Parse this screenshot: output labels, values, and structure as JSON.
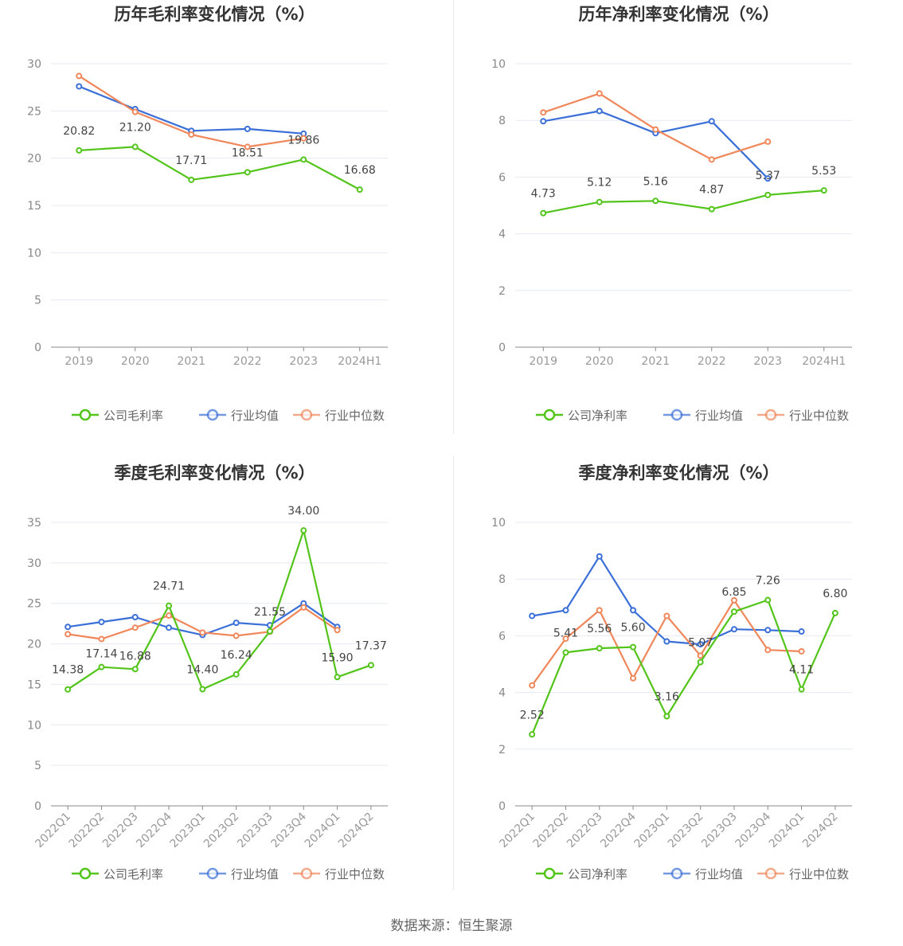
{
  "colors": {
    "company": "#52c41a",
    "avg": "#3a6fd8",
    "median": "#f0875a"
  },
  "legend": {
    "company_gross": "公司毛利率",
    "company_net": "公司净利率",
    "avg": "行业均值",
    "median": "行业中位数"
  },
  "source": "数据来源：恒生聚源",
  "chart_data": [
    {
      "type": "line",
      "title": "历年毛利率变化情况（%）",
      "categories": [
        "2019",
        "2020",
        "2021",
        "2022",
        "2023",
        "2024H1"
      ],
      "ylim": [
        0,
        30
      ],
      "yticks": [
        0,
        5,
        10,
        15,
        20,
        25,
        30
      ],
      "legend_position": "bottom",
      "series": [
        {
          "name": "公司毛利率",
          "role": "company",
          "values": [
            20.82,
            21.2,
            17.71,
            18.51,
            19.86,
            16.68
          ],
          "labels": [
            "20.82",
            "21.20",
            "17.71",
            "18.51",
            "19.86",
            "16.68"
          ]
        },
        {
          "name": "行业均值",
          "role": "avg",
          "values": [
            27.6,
            25.2,
            22.9,
            23.1,
            22.6,
            null
          ]
        },
        {
          "name": "行业中位数",
          "role": "median",
          "values": [
            28.7,
            24.9,
            22.5,
            21.2,
            22.1,
            null
          ]
        }
      ]
    },
    {
      "type": "line",
      "title": "历年净利率变化情况（%）",
      "categories": [
        "2019",
        "2020",
        "2021",
        "2022",
        "2023",
        "2024H1"
      ],
      "ylim": [
        0,
        10
      ],
      "yticks": [
        0,
        2,
        4,
        6,
        8,
        10
      ],
      "legend_position": "bottom",
      "series": [
        {
          "name": "公司净利率",
          "role": "company",
          "values": [
            4.73,
            5.12,
            5.16,
            4.87,
            5.37,
            5.53
          ],
          "labels": [
            "4.73",
            "5.12",
            "5.16",
            "4.87",
            "5.37",
            "5.53"
          ]
        },
        {
          "name": "行业均值",
          "role": "avg",
          "values": [
            7.97,
            8.33,
            7.55,
            7.97,
            5.95,
            null
          ]
        },
        {
          "name": "行业中位数",
          "role": "median",
          "values": [
            8.28,
            8.95,
            7.68,
            6.62,
            7.25,
            null
          ]
        }
      ]
    },
    {
      "type": "line",
      "title": "季度毛利率变化情况（%）",
      "categories": [
        "2022Q1",
        "2022Q2",
        "2022Q3",
        "2022Q4",
        "2023Q1",
        "2023Q2",
        "2023Q3",
        "2023Q4",
        "2024Q1",
        "2024Q2"
      ],
      "ylim": [
        0,
        35
      ],
      "yticks": [
        0,
        5,
        10,
        15,
        20,
        25,
        30,
        35
      ],
      "legend_position": "bottom",
      "series": [
        {
          "name": "公司毛利率",
          "role": "company",
          "values": [
            14.38,
            17.14,
            16.88,
            24.71,
            14.4,
            16.24,
            21.55,
            34.0,
            15.9,
            17.37
          ],
          "labels": [
            "14.38",
            "17.14",
            "16.88",
            "24.71",
            "14.40",
            "16.24",
            "21.55",
            "34.00",
            "15.90",
            "17.37"
          ]
        },
        {
          "name": "行业均值",
          "role": "avg",
          "values": [
            22.1,
            22.7,
            23.3,
            22.0,
            21.1,
            22.6,
            22.3,
            25.0,
            22.1,
            null
          ]
        },
        {
          "name": "行业中位数",
          "role": "median",
          "values": [
            21.2,
            20.6,
            22.0,
            23.5,
            21.4,
            21.0,
            21.5,
            24.5,
            21.7,
            null
          ]
        }
      ]
    },
    {
      "type": "line",
      "title": "季度净利率变化情况（%）",
      "categories": [
        "2022Q1",
        "2022Q2",
        "2022Q3",
        "2022Q4",
        "2023Q1",
        "2023Q2",
        "2023Q3",
        "2023Q4",
        "2024Q1",
        "2024Q2"
      ],
      "ylim": [
        0,
        10
      ],
      "yticks": [
        0,
        2,
        4,
        6,
        8,
        10
      ],
      "legend_position": "bottom",
      "series": [
        {
          "name": "公司净利率",
          "role": "company",
          "values": [
            2.52,
            5.41,
            5.56,
            5.6,
            3.16,
            5.07,
            6.85,
            7.26,
            4.11,
            6.8
          ],
          "labels": [
            "2.52",
            "5.41",
            "5.56",
            "5.60",
            "3.16",
            "5.07",
            "6.85",
            "7.26",
            "4.11",
            "6.80"
          ]
        },
        {
          "name": "行业均值",
          "role": "avg",
          "values": [
            6.7,
            6.9,
            8.8,
            6.9,
            5.8,
            5.7,
            6.23,
            6.2,
            6.15,
            null
          ]
        },
        {
          "name": "行业中位数",
          "role": "median",
          "values": [
            4.25,
            5.9,
            6.9,
            4.5,
            6.7,
            5.3,
            7.25,
            5.5,
            5.45,
            null
          ]
        }
      ]
    }
  ]
}
